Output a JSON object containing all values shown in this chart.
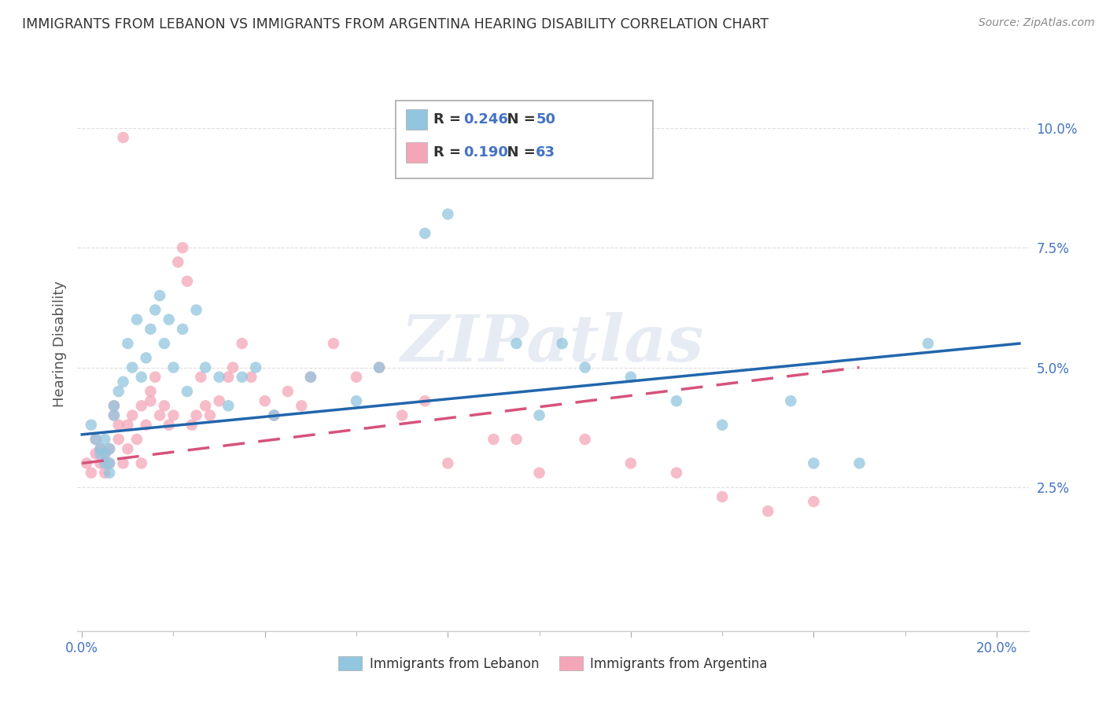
{
  "title": "IMMIGRANTS FROM LEBANON VS IMMIGRANTS FROM ARGENTINA HEARING DISABILITY CORRELATION CHART",
  "source": "Source: ZipAtlas.com",
  "ylabel": "Hearing Disability",
  "legend1_r": "0.246",
  "legend1_n": "50",
  "legend2_r": "0.190",
  "legend2_n": "63",
  "legend1_label": "Immigrants from Lebanon",
  "legend2_label": "Immigrants from Argentina",
  "blue_color": "#92c5de",
  "pink_color": "#f4a6b8",
  "trend_blue": "#2166ac",
  "trend_pink": "#d6537a",
  "watermark": "ZIPatlas",
  "ylim_min": -0.005,
  "ylim_max": 0.115,
  "xlim_min": -0.001,
  "xlim_max": 0.207,
  "yticks": [
    0.025,
    0.05,
    0.075,
    0.1
  ],
  "ytick_labels": [
    "2.5%",
    "5.0%",
    "7.5%",
    "10.0%"
  ],
  "xticks": [
    0.0,
    0.04,
    0.08,
    0.12,
    0.16,
    0.2
  ],
  "xtick_show": [
    true,
    false,
    false,
    false,
    false,
    true
  ],
  "bg_color": "#ffffff",
  "grid_color": "#dddddd",
  "title_color": "#333333",
  "tick_color": "#4472c4",
  "lebanon_x": [
    0.002,
    0.003,
    0.004,
    0.004,
    0.005,
    0.005,
    0.005,
    0.006,
    0.006,
    0.006,
    0.007,
    0.007,
    0.008,
    0.009,
    0.01,
    0.011,
    0.012,
    0.013,
    0.014,
    0.015,
    0.016,
    0.017,
    0.018,
    0.019,
    0.02,
    0.022,
    0.023,
    0.025,
    0.027,
    0.03,
    0.032,
    0.035,
    0.038,
    0.042,
    0.05,
    0.06,
    0.065,
    0.075,
    0.08,
    0.095,
    0.1,
    0.105,
    0.11,
    0.12,
    0.13,
    0.14,
    0.155,
    0.16,
    0.17,
    0.185
  ],
  "lebanon_y": [
    0.038,
    0.035,
    0.033,
    0.032,
    0.03,
    0.032,
    0.035,
    0.028,
    0.03,
    0.033,
    0.04,
    0.042,
    0.045,
    0.047,
    0.055,
    0.05,
    0.06,
    0.048,
    0.052,
    0.058,
    0.062,
    0.065,
    0.055,
    0.06,
    0.05,
    0.058,
    0.045,
    0.062,
    0.05,
    0.048,
    0.042,
    0.048,
    0.05,
    0.04,
    0.048,
    0.043,
    0.05,
    0.078,
    0.082,
    0.055,
    0.04,
    0.055,
    0.05,
    0.048,
    0.043,
    0.038,
    0.043,
    0.03,
    0.03,
    0.055
  ],
  "argentina_x": [
    0.001,
    0.002,
    0.003,
    0.003,
    0.004,
    0.004,
    0.005,
    0.005,
    0.006,
    0.006,
    0.007,
    0.007,
    0.008,
    0.008,
    0.009,
    0.009,
    0.01,
    0.01,
    0.011,
    0.012,
    0.013,
    0.013,
    0.014,
    0.015,
    0.015,
    0.016,
    0.017,
    0.018,
    0.019,
    0.02,
    0.021,
    0.022,
    0.023,
    0.024,
    0.025,
    0.026,
    0.027,
    0.028,
    0.03,
    0.032,
    0.033,
    0.035,
    0.037,
    0.04,
    0.042,
    0.045,
    0.048,
    0.05,
    0.055,
    0.06,
    0.065,
    0.07,
    0.075,
    0.08,
    0.09,
    0.095,
    0.1,
    0.11,
    0.12,
    0.13,
    0.14,
    0.15,
    0.16
  ],
  "argentina_y": [
    0.03,
    0.028,
    0.032,
    0.035,
    0.03,
    0.033,
    0.028,
    0.032,
    0.03,
    0.033,
    0.04,
    0.042,
    0.035,
    0.038,
    0.03,
    0.098,
    0.033,
    0.038,
    0.04,
    0.035,
    0.03,
    0.042,
    0.038,
    0.043,
    0.045,
    0.048,
    0.04,
    0.042,
    0.038,
    0.04,
    0.072,
    0.075,
    0.068,
    0.038,
    0.04,
    0.048,
    0.042,
    0.04,
    0.043,
    0.048,
    0.05,
    0.055,
    0.048,
    0.043,
    0.04,
    0.045,
    0.042,
    0.048,
    0.055,
    0.048,
    0.05,
    0.04,
    0.043,
    0.03,
    0.035,
    0.035,
    0.028,
    0.035,
    0.03,
    0.028,
    0.023,
    0.02,
    0.022
  ]
}
